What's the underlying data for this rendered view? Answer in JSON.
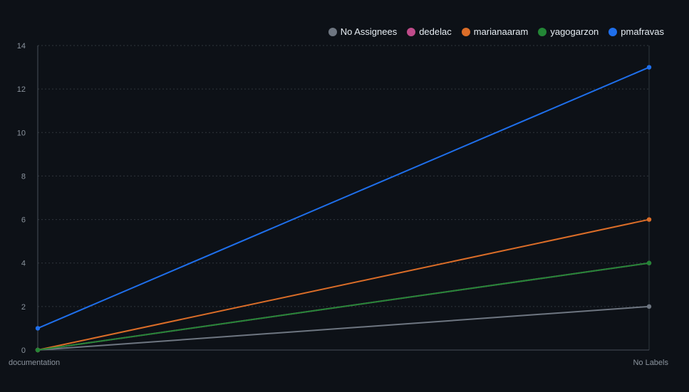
{
  "chart_data": {
    "type": "line",
    "categories": [
      "documentation",
      "No Labels"
    ],
    "ylim": [
      0,
      14
    ],
    "yticks": [
      0,
      2,
      4,
      6,
      8,
      10,
      12,
      14
    ],
    "grid": true,
    "legend_position": "top-right",
    "series": [
      {
        "name": "No Assignees",
        "color": "#6e7681",
        "values": [
          0,
          2
        ]
      },
      {
        "name": "dedelac",
        "color": "#bf4b8a",
        "values": [
          0,
          4
        ]
      },
      {
        "name": "marianaaram",
        "color": "#db6d28",
        "values": [
          0,
          6
        ]
      },
      {
        "name": "yagogarzon",
        "color": "#238636",
        "values": [
          0,
          4
        ]
      },
      {
        "name": "pmafravas",
        "color": "#1f6feb",
        "values": [
          1,
          13
        ]
      }
    ]
  }
}
